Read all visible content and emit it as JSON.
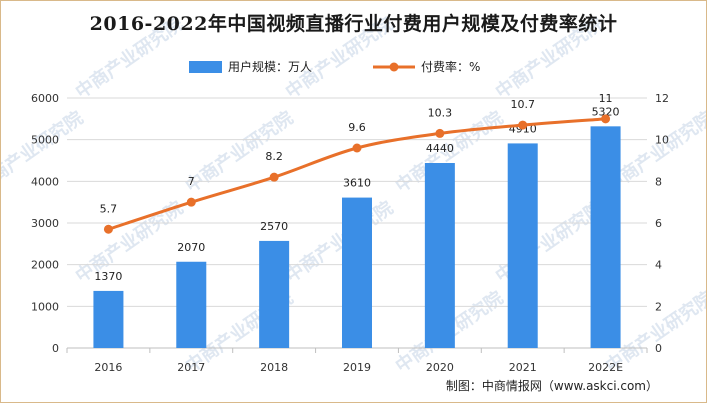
{
  "chart_data": {
    "type": "bar",
    "title": "2016-2022年中国视频直播行业付费用户规模及付费率统计",
    "categories": [
      "2016",
      "2017",
      "2018",
      "2019",
      "2020",
      "2021",
      "2022E"
    ],
    "series": [
      {
        "name": "用户规模：万人",
        "type": "bar",
        "axis": "left",
        "values": [
          1370,
          2070,
          2570,
          3610,
          4440,
          4910,
          5320
        ],
        "labels": [
          "1370",
          "2070",
          "2570",
          "3610",
          "4440",
          "4910",
          "5320"
        ],
        "color": "#3b8ee6"
      },
      {
        "name": "付费率：%",
        "type": "line",
        "axis": "right",
        "values": [
          5.7,
          7,
          8.2,
          9.6,
          10.3,
          10.7,
          11
        ],
        "labels": [
          "5.7",
          "7",
          "8.2",
          "9.6",
          "10.3",
          "10.7",
          "11"
        ],
        "color": "#e8702a"
      }
    ],
    "ylim_left": [
      0,
      6000
    ],
    "yticks_left": [
      "0",
      "1000",
      "2000",
      "3000",
      "4000",
      "5000",
      "6000"
    ],
    "ylim_right": [
      0,
      12
    ],
    "yticks_right": [
      "0",
      "2",
      "4",
      "6",
      "8",
      "10",
      "12"
    ],
    "grid": true,
    "legend": "top-center"
  },
  "source": "制图：中商情报网（www.askci.com）",
  "watermark": "中商产业研究院"
}
